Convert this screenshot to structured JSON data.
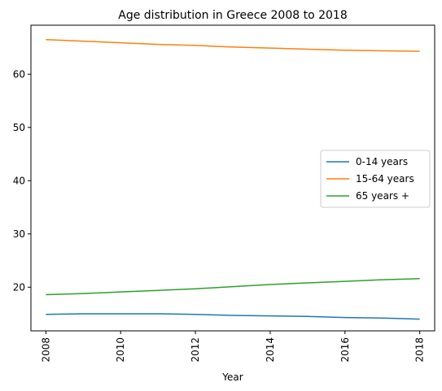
{
  "chart_data": {
    "type": "line",
    "title": "Age distribution in Greece 2008 to 2018",
    "xlabel": "Year",
    "ylabel": "",
    "x": [
      2008,
      2009,
      2010,
      2011,
      2012,
      2013,
      2014,
      2015,
      2016,
      2017,
      2018
    ],
    "xlim": [
      2007.6,
      2018.4
    ],
    "ylim": [
      11.8,
      69.2
    ],
    "xticks": [
      2008,
      2010,
      2012,
      2014,
      2016,
      2018
    ],
    "yticks": [
      20,
      30,
      40,
      50,
      60
    ],
    "grid": false,
    "legend_position": "center-right",
    "series": [
      {
        "name": "0-14 years",
        "color": "#1f77b4",
        "values": [
          14.9,
          15.0,
          15.0,
          15.0,
          14.9,
          14.7,
          14.6,
          14.5,
          14.3,
          14.2,
          14.0
        ]
      },
      {
        "name": "15-64 years",
        "color": "#ff7f0e",
        "values": [
          66.5,
          66.2,
          65.9,
          65.6,
          65.4,
          65.1,
          64.9,
          64.7,
          64.5,
          64.4,
          64.3
        ]
      },
      {
        "name": "65 years +",
        "color": "#2ca02c",
        "values": [
          18.6,
          18.8,
          19.1,
          19.4,
          19.7,
          20.1,
          20.5,
          20.8,
          21.1,
          21.4,
          21.6
        ]
      }
    ]
  }
}
